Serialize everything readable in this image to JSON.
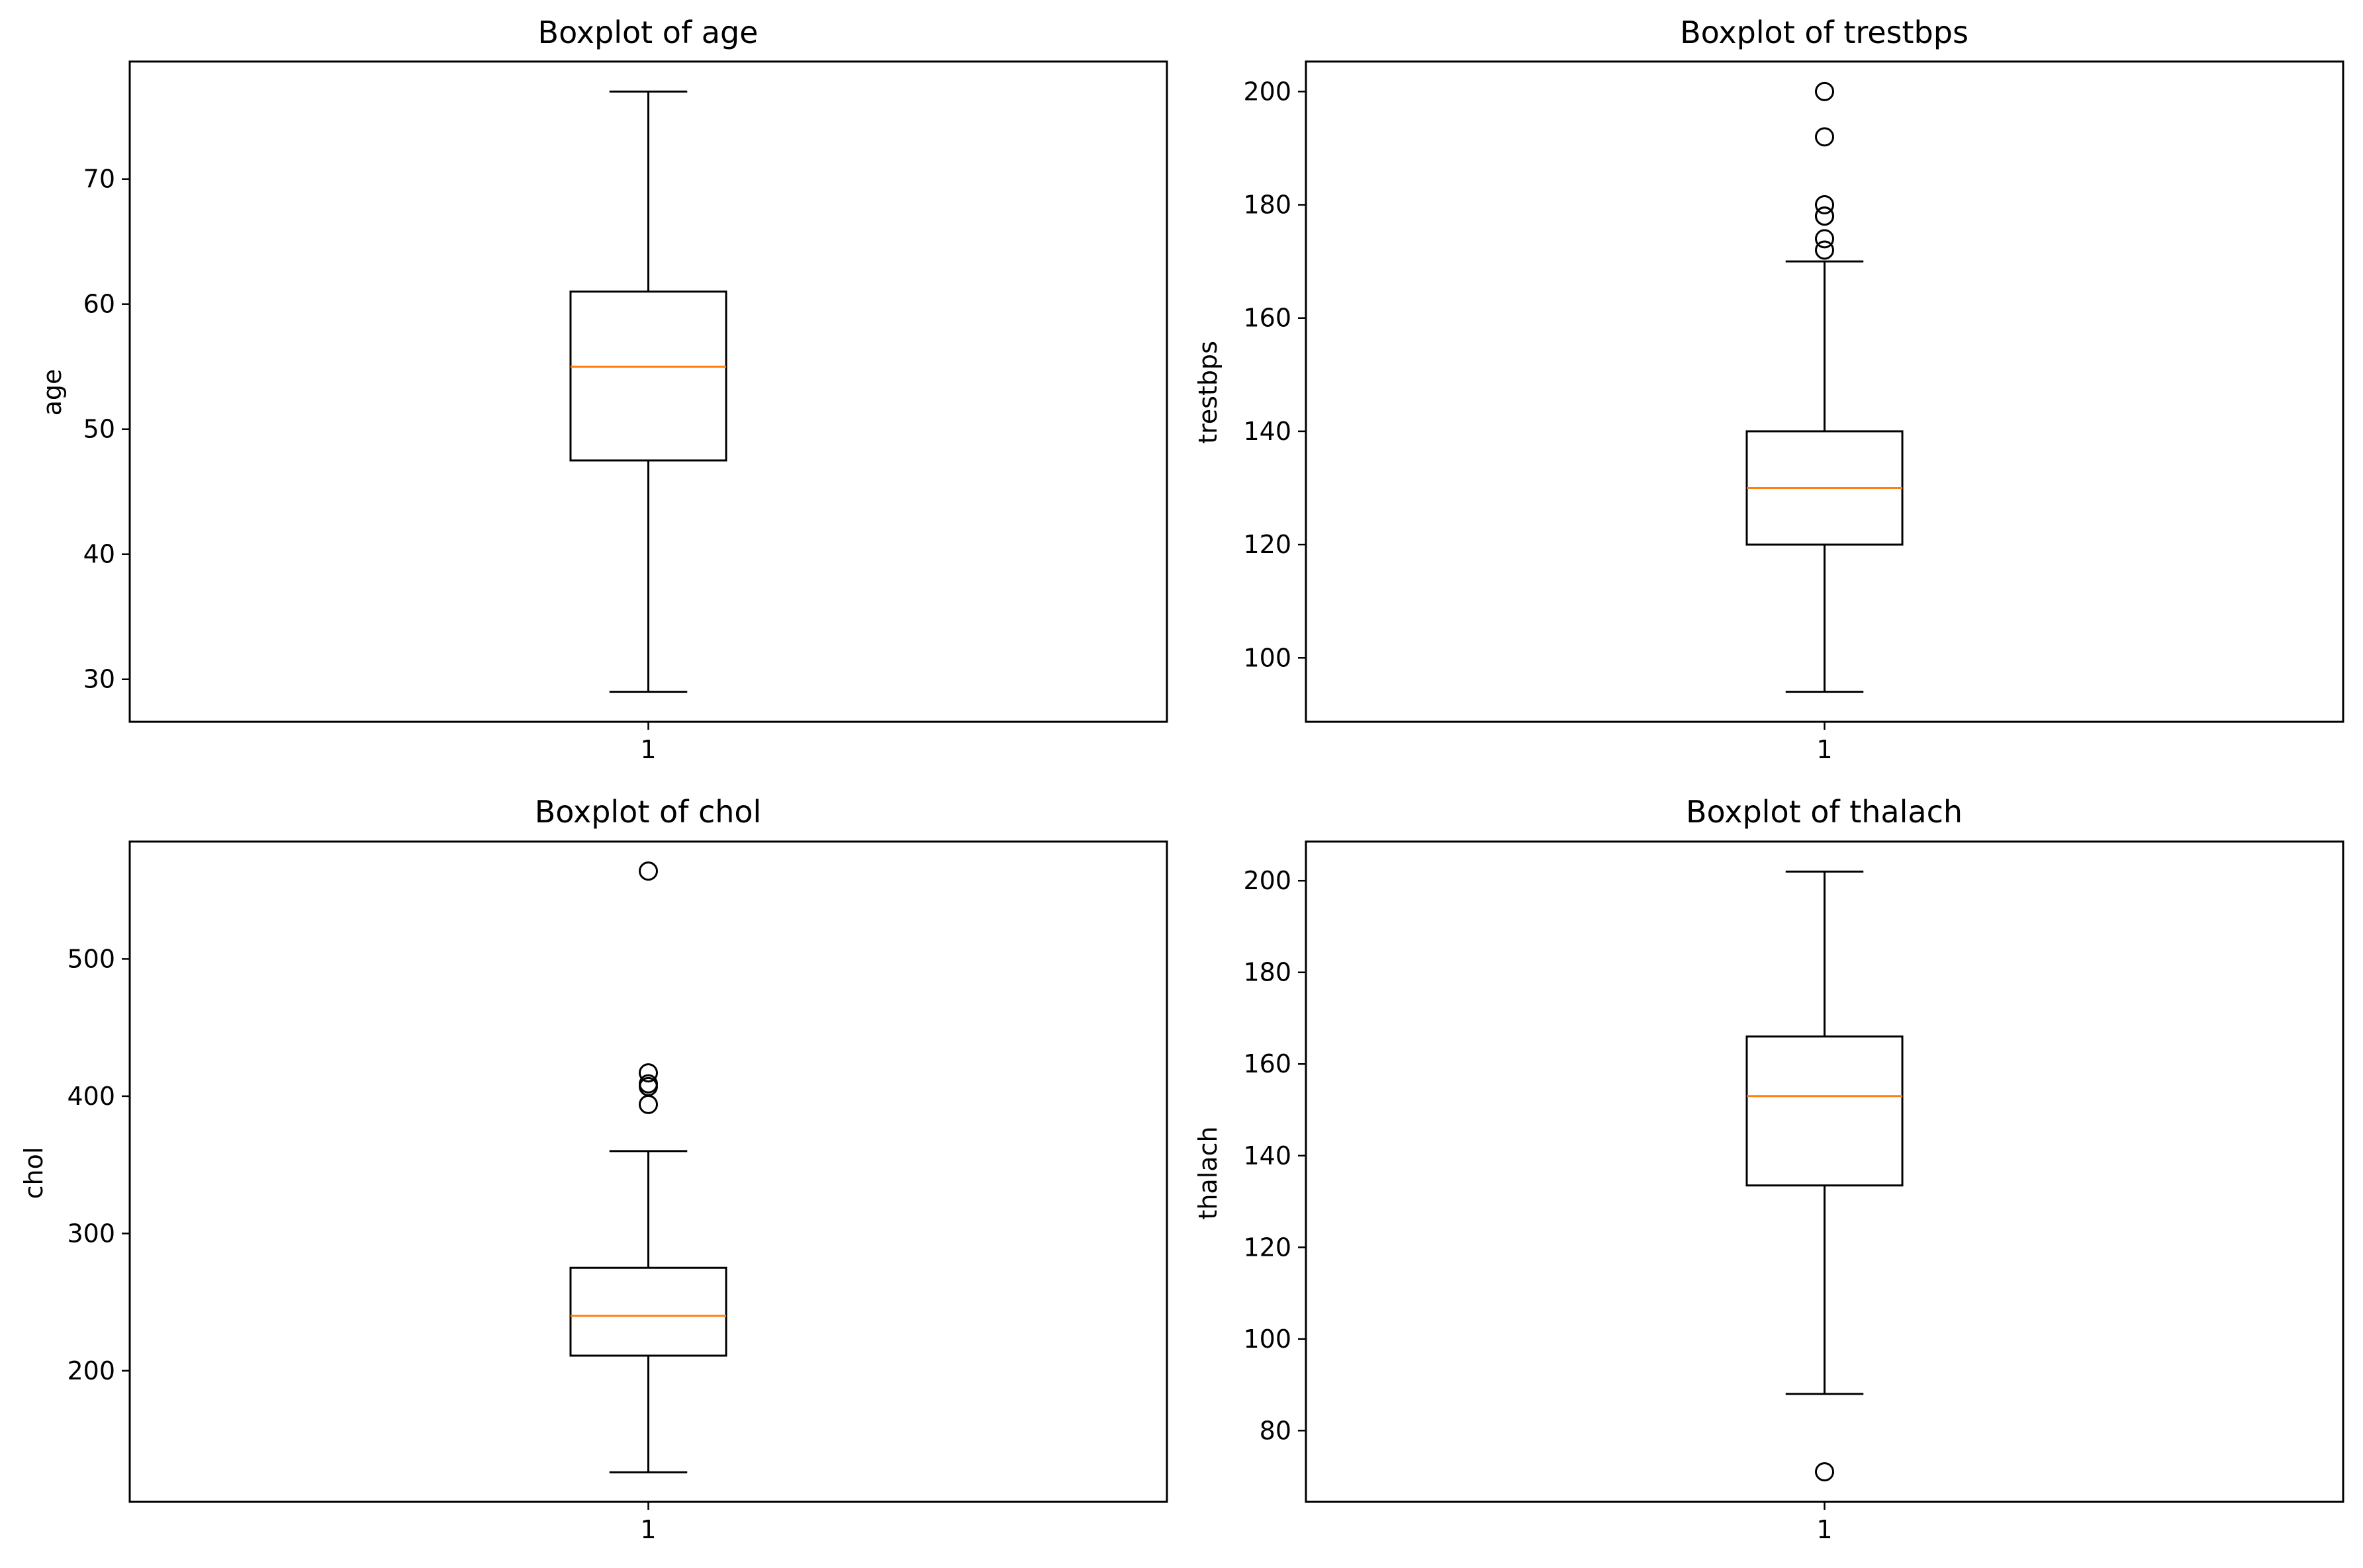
{
  "figure": {
    "layout": "2x2 grid",
    "background_color": "#ffffff"
  },
  "chart_data": [
    {
      "type": "boxplot",
      "title": "Boxplot of age",
      "xlabel": "",
      "ylabel": "age",
      "categories": [
        "1"
      ],
      "ylim": [
        26.6,
        79.4
      ],
      "yticks": [
        30,
        40,
        50,
        60,
        70
      ],
      "stats": {
        "whisker_low": 29,
        "q1": 47.5,
        "median": 55,
        "q3": 61,
        "whisker_high": 77
      },
      "outliers": [],
      "grid": false,
      "box_color": "#000000",
      "median_color": "#ff7f0e"
    },
    {
      "type": "boxplot",
      "title": "Boxplot of trestbps",
      "xlabel": "",
      "ylabel": "trestbps",
      "categories": [
        "1"
      ],
      "ylim": [
        88.7,
        205.3
      ],
      "yticks": [
        100,
        120,
        140,
        160,
        180,
        200
      ],
      "stats": {
        "whisker_low": 94,
        "q1": 120,
        "median": 130,
        "q3": 140,
        "whisker_high": 170
      },
      "outliers": [
        172,
        174,
        178,
        178,
        180,
        192,
        200
      ],
      "grid": false,
      "box_color": "#000000",
      "median_color": "#ff7f0e"
    },
    {
      "type": "boxplot",
      "title": "Boxplot of chol",
      "xlabel": "",
      "ylabel": "chol",
      "categories": [
        "1"
      ],
      "ylim": [
        104.5,
        585.5
      ],
      "yticks": [
        200,
        300,
        400,
        500
      ],
      "stats": {
        "whisker_low": 126,
        "q1": 211,
        "median": 240,
        "q3": 275,
        "whisker_high": 360
      },
      "outliers": [
        394,
        407,
        409,
        417,
        564
      ],
      "grid": false,
      "box_color": "#000000",
      "median_color": "#ff7f0e"
    },
    {
      "type": "boxplot",
      "title": "Boxplot of thalach",
      "xlabel": "",
      "ylabel": "thalach",
      "categories": [
        "1"
      ],
      "ylim": [
        64.45,
        208.55
      ],
      "yticks": [
        80,
        100,
        120,
        140,
        160,
        180,
        200
      ],
      "stats": {
        "whisker_low": 88,
        "q1": 133.5,
        "median": 153,
        "q3": 166,
        "whisker_high": 202
      },
      "outliers": [
        71
      ],
      "grid": false,
      "box_color": "#000000",
      "median_color": "#ff7f0e"
    }
  ]
}
